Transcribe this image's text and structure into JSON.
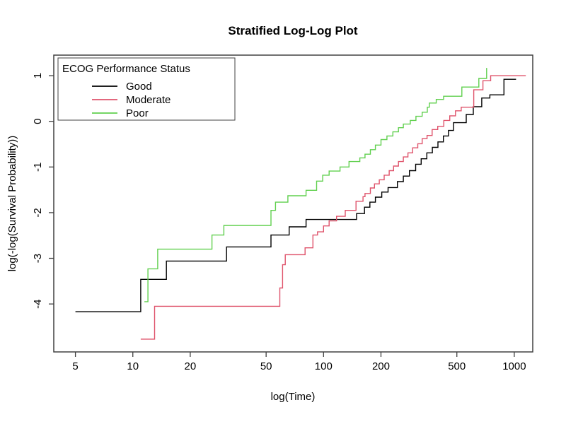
{
  "chart_data": {
    "type": "line",
    "variant": "step-function-survival-loglog",
    "title": "Stratified Log-Log Plot",
    "xlabel": "log(Time)",
    "ylabel": "log(-log(Survival Probability))",
    "x_scale": "log10",
    "grid": false,
    "x_ticks": [
      5,
      10,
      20,
      50,
      100,
      200,
      500,
      1000
    ],
    "y_ticks": [
      1,
      0,
      -1,
      -2,
      -3,
      -4
    ],
    "x_range": [
      3.85,
      1250
    ],
    "y_range": [
      -5.05,
      1.45
    ],
    "legend": {
      "title": "ECOG Performance Status",
      "position": "top-left"
    },
    "series": [
      {
        "name": "Good",
        "color": "#000000",
        "points": [
          [
            5,
            -4.17
          ],
          [
            11,
            -3.46
          ],
          [
            15,
            -3.06
          ],
          [
            31,
            -2.75
          ],
          [
            53,
            -2.49
          ],
          [
            66,
            -2.31
          ],
          [
            81,
            -2.15
          ],
          [
            149,
            -2.02
          ],
          [
            164,
            -1.88
          ],
          [
            175,
            -1.77
          ],
          [
            187,
            -1.66
          ],
          [
            202,
            -1.55
          ],
          [
            218,
            -1.45
          ],
          [
            244,
            -1.32
          ],
          [
            262,
            -1.2
          ],
          [
            282,
            -1.08
          ],
          [
            304,
            -0.94
          ],
          [
            325,
            -0.82
          ],
          [
            348,
            -0.69
          ],
          [
            372,
            -0.57
          ],
          [
            398,
            -0.45
          ],
          [
            425,
            -0.32
          ],
          [
            452,
            -0.2
          ],
          [
            480,
            -0.03
          ],
          [
            560,
            0.15
          ],
          [
            610,
            0.32
          ],
          [
            675,
            0.51
          ],
          [
            745,
            0.58
          ],
          [
            883,
            0.92
          ],
          [
            1022,
            0.92
          ]
        ]
      },
      {
        "name": "Moderate",
        "color": "#DF536B",
        "points": [
          [
            11,
            -4.77
          ],
          [
            13,
            -4.05
          ],
          [
            59,
            -3.65
          ],
          [
            61,
            -3.14
          ],
          [
            63,
            -2.92
          ],
          [
            80,
            -2.77
          ],
          [
            88,
            -2.49
          ],
          [
            93,
            -2.42
          ],
          [
            100,
            -2.29
          ],
          [
            107,
            -2.18
          ],
          [
            117,
            -2.08
          ],
          [
            130,
            -1.95
          ],
          [
            148,
            -1.75
          ],
          [
            161,
            -1.65
          ],
          [
            165,
            -1.58
          ],
          [
            176,
            -1.46
          ],
          [
            185,
            -1.37
          ],
          [
            196,
            -1.28
          ],
          [
            208,
            -1.18
          ],
          [
            221,
            -1.08
          ],
          [
            233,
            -0.98
          ],
          [
            247,
            -0.88
          ],
          [
            262,
            -0.78
          ],
          [
            277,
            -0.69
          ],
          [
            293,
            -0.58
          ],
          [
            312,
            -0.49
          ],
          [
            329,
            -0.38
          ],
          [
            349,
            -0.31
          ],
          [
            371,
            -0.18
          ],
          [
            397,
            -0.11
          ],
          [
            427,
            0.02
          ],
          [
            459,
            0.12
          ],
          [
            492,
            0.23
          ],
          [
            527,
            0.31
          ],
          [
            613,
            0.69
          ],
          [
            685,
            0.89
          ],
          [
            752,
            1.0
          ],
          [
            1150,
            1.0
          ]
        ]
      },
      {
        "name": "Poor",
        "color": "#61D04F",
        "points": [
          [
            11.5,
            -3.95
          ],
          [
            12,
            -3.23
          ],
          [
            13.5,
            -2.8
          ],
          [
            26,
            -2.49
          ],
          [
            30,
            -2.28
          ],
          [
            53,
            -1.95
          ],
          [
            56,
            -1.77
          ],
          [
            65,
            -1.63
          ],
          [
            81,
            -1.51
          ],
          [
            92,
            -1.31
          ],
          [
            99,
            -1.18
          ],
          [
            107,
            -1.09
          ],
          [
            122,
            -1.0
          ],
          [
            136,
            -0.88
          ],
          [
            155,
            -0.8
          ],
          [
            165,
            -0.72
          ],
          [
            176,
            -0.62
          ],
          [
            187,
            -0.52
          ],
          [
            200,
            -0.4
          ],
          [
            215,
            -0.32
          ],
          [
            231,
            -0.23
          ],
          [
            247,
            -0.14
          ],
          [
            262,
            -0.06
          ],
          [
            285,
            0.02
          ],
          [
            305,
            0.11
          ],
          [
            329,
            0.2
          ],
          [
            350,
            0.31
          ],
          [
            359,
            0.4
          ],
          [
            390,
            0.48
          ],
          [
            426,
            0.55
          ],
          [
            531,
            0.75
          ],
          [
            652,
            0.94
          ],
          [
            716,
            1.17
          ]
        ]
      }
    ]
  }
}
